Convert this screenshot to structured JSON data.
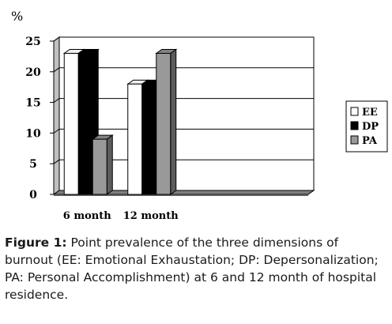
{
  "chart_data": {
    "type": "bar",
    "ylabel": "%",
    "categories": [
      "6 month",
      "12 month"
    ],
    "series": [
      {
        "name": "EE",
        "values": [
          23,
          18
        ],
        "color": "#ffffff"
      },
      {
        "name": "DP",
        "values": [
          23,
          18
        ],
        "color": "#000000"
      },
      {
        "name": "PA",
        "values": [
          9,
          23
        ],
        "color": "#999999"
      }
    ],
    "ylim": [
      0,
      25
    ],
    "yticks": [
      "0",
      "5",
      "10",
      "15",
      "20",
      "25"
    ],
    "grid": true,
    "legend_position": "right",
    "style": "3d-bar"
  },
  "caption": {
    "label": "Figure 1:",
    "text": "Point prevalence of the three dimensions of burnout (EE: Emotional Exhaustation; DP: Depersonalization; PA: Personal Accomplishment) at 6 and 12 month of hospital residence."
  }
}
